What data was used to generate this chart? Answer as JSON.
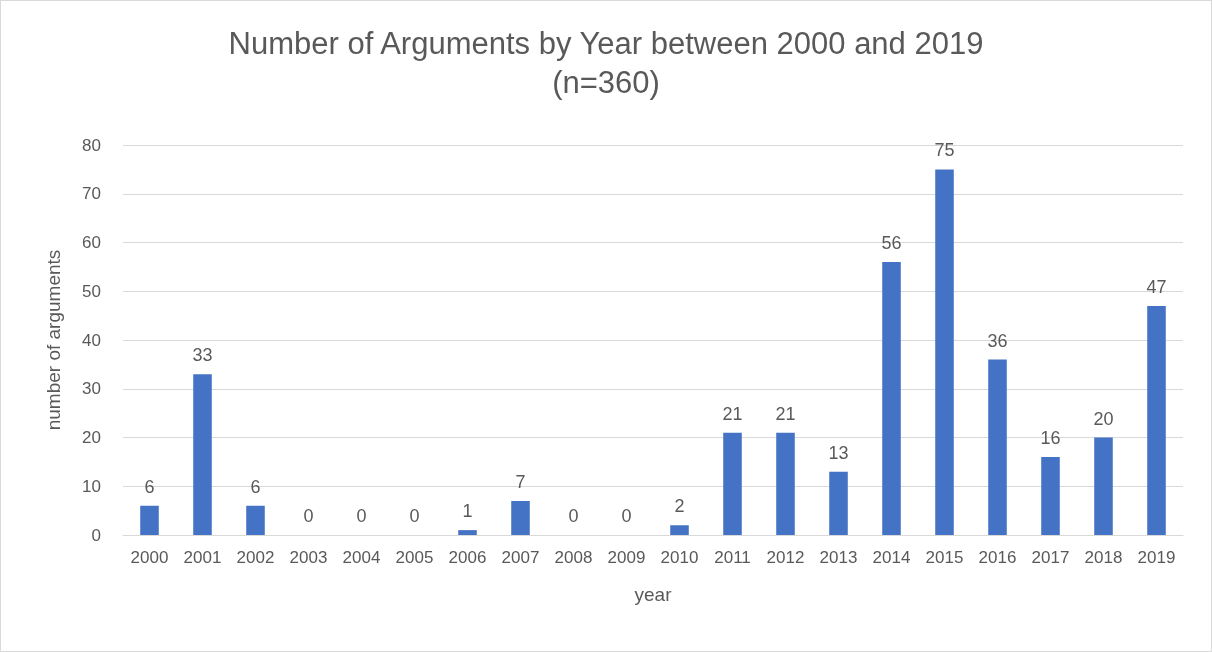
{
  "chart_data": {
    "type": "bar",
    "title": "Number of Arguments by Year between 2000 and 2019",
    "subtitle": "(n=360)",
    "xlabel": "year",
    "ylabel": "number of arguments",
    "categories": [
      "2000",
      "2001",
      "2002",
      "2003",
      "2004",
      "2005",
      "2006",
      "2007",
      "2008",
      "2009",
      "2010",
      "2011",
      "2012",
      "2013",
      "2014",
      "2015",
      "2016",
      "2017",
      "2018",
      "2019"
    ],
    "values": [
      6,
      33,
      6,
      0,
      0,
      0,
      1,
      7,
      0,
      0,
      2,
      21,
      21,
      13,
      56,
      75,
      36,
      16,
      20,
      47
    ],
    "color": "#4472c4",
    "ylim": [
      0,
      80
    ],
    "yticks": [
      0,
      10,
      20,
      30,
      40,
      50,
      60,
      70,
      80
    ],
    "grid": "y",
    "data_labels": true
  }
}
